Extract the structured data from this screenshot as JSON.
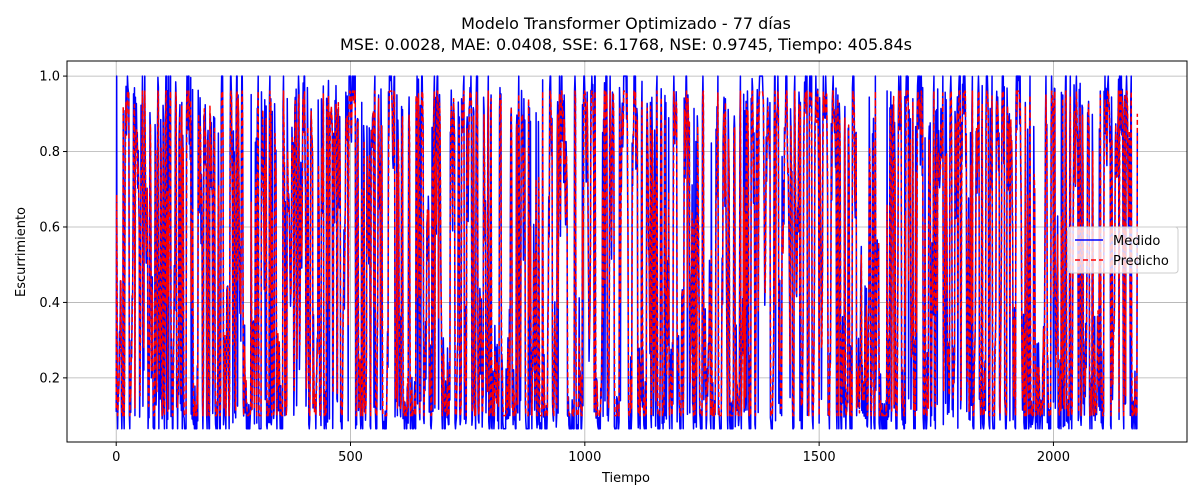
{
  "chart_data": {
    "type": "line",
    "title": "Modelo Transformer Optimizado - 77 días",
    "subtitle": "MSE: 0.0028, MAE: 0.0408, SSE: 6.1768, NSE: 0.9745, Tiempo: 405.84s",
    "xlabel": "Tiempo",
    "ylabel": "Escurrimiento",
    "xlim": [
      -105,
      2285
    ],
    "ylim": [
      0.03,
      1.04
    ],
    "x_ticks": [
      0,
      500,
      1000,
      1500,
      2000
    ],
    "x_tick_labels": [
      "0",
      "500",
      "1000",
      "1500",
      "2000"
    ],
    "y_ticks": [
      0.2,
      0.4,
      0.6,
      0.8,
      1.0
    ],
    "y_tick_labels": [
      "0.2",
      "0.4",
      "0.6",
      "0.8",
      "1.0"
    ],
    "grid": true,
    "legend_position": "center-right",
    "n_points": 2180,
    "series": [
      {
        "name": "Medido",
        "color": "#0000ff",
        "style": "solid",
        "x_start": 0,
        "x_end": 2179,
        "min": 0.065,
        "max": 1.0,
        "points": [
          [
            0,
            0.11
          ],
          [
            15,
            0.9
          ],
          [
            25,
            0.97
          ],
          [
            40,
            0.1
          ],
          [
            60,
            0.92
          ],
          [
            75,
            0.2
          ],
          [
            90,
            0.97
          ],
          [
            110,
            0.09
          ],
          [
            140,
            0.93
          ],
          [
            170,
            0.12
          ],
          [
            200,
            0.9
          ],
          [
            230,
            0.1
          ],
          [
            260,
            0.95
          ],
          [
            300,
            0.08
          ],
          [
            330,
            0.94
          ],
          [
            360,
            0.1
          ],
          [
            390,
            0.96
          ],
          [
            420,
            0.12
          ],
          [
            450,
            0.93
          ],
          [
            480,
            0.09
          ],
          [
            500,
            1.0
          ],
          [
            530,
            0.11
          ],
          [
            560,
            0.95
          ],
          [
            600,
            0.1
          ],
          [
            640,
            0.94
          ],
          [
            680,
            0.12
          ],
          [
            720,
            0.93
          ],
          [
            760,
            0.09
          ],
          [
            800,
            0.95
          ],
          [
            840,
            0.1
          ],
          [
            880,
            0.93
          ],
          [
            910,
            0.99
          ],
          [
            940,
            0.1
          ],
          [
            980,
            0.95
          ],
          [
            1020,
            0.11
          ],
          [
            1060,
            0.94
          ],
          [
            1100,
            0.1
          ],
          [
            1140,
            0.93
          ],
          [
            1180,
            0.12
          ],
          [
            1220,
            0.95
          ],
          [
            1260,
            0.09
          ],
          [
            1300,
            0.94
          ],
          [
            1340,
            0.11
          ],
          [
            1380,
            0.96
          ],
          [
            1420,
            0.1
          ],
          [
            1460,
            0.93
          ],
          [
            1500,
            0.08
          ],
          [
            1540,
            0.95
          ],
          [
            1580,
            0.1
          ],
          [
            1620,
            1.0
          ],
          [
            1660,
            0.12
          ],
          [
            1700,
            0.94
          ],
          [
            1740,
            0.1
          ],
          [
            1780,
            0.96
          ],
          [
            1820,
            0.09
          ],
          [
            1860,
            0.95
          ],
          [
            1900,
            0.11
          ],
          [
            1940,
            0.93
          ],
          [
            1980,
            0.1
          ],
          [
            2020,
            0.95
          ],
          [
            2060,
            0.12
          ],
          [
            2100,
            0.96
          ],
          [
            2140,
            0.09
          ],
          [
            2179,
            0.85
          ]
        ]
      },
      {
        "name": "Predicho",
        "color": "#ff0000",
        "style": "dashed",
        "x_start": 0,
        "x_end": 2179,
        "min": 0.1,
        "max": 0.96,
        "points": [
          [
            0,
            0.12
          ],
          [
            15,
            0.92
          ],
          [
            25,
            0.95
          ],
          [
            40,
            0.12
          ],
          [
            60,
            0.9
          ],
          [
            75,
            0.22
          ],
          [
            90,
            0.95
          ],
          [
            110,
            0.11
          ],
          [
            140,
            0.92
          ],
          [
            170,
            0.13
          ],
          [
            200,
            0.92
          ],
          [
            230,
            0.12
          ],
          [
            260,
            0.94
          ],
          [
            300,
            0.1
          ],
          [
            330,
            0.93
          ],
          [
            360,
            0.12
          ],
          [
            390,
            0.95
          ],
          [
            420,
            0.13
          ],
          [
            450,
            0.92
          ],
          [
            480,
            0.11
          ],
          [
            500,
            0.95
          ],
          [
            530,
            0.12
          ],
          [
            560,
            0.94
          ],
          [
            600,
            0.12
          ],
          [
            640,
            0.95
          ],
          [
            680,
            0.13
          ],
          [
            720,
            0.94
          ],
          [
            760,
            0.11
          ],
          [
            800,
            0.94
          ],
          [
            840,
            0.12
          ],
          [
            880,
            0.94
          ],
          [
            910,
            0.96
          ],
          [
            940,
            0.12
          ],
          [
            980,
            0.94
          ],
          [
            1020,
            0.12
          ],
          [
            1060,
            0.93
          ],
          [
            1100,
            0.12
          ],
          [
            1140,
            0.92
          ],
          [
            1180,
            0.13
          ],
          [
            1220,
            0.94
          ],
          [
            1260,
            0.11
          ],
          [
            1300,
            0.93
          ],
          [
            1340,
            0.12
          ],
          [
            1380,
            0.95
          ],
          [
            1420,
            0.12
          ],
          [
            1460,
            0.92
          ],
          [
            1500,
            0.1
          ],
          [
            1540,
            0.94
          ],
          [
            1580,
            0.12
          ],
          [
            1620,
            0.96
          ],
          [
            1660,
            0.13
          ],
          [
            1700,
            0.93
          ],
          [
            1740,
            0.12
          ],
          [
            1780,
            0.95
          ],
          [
            1820,
            0.11
          ],
          [
            1860,
            0.94
          ],
          [
            1900,
            0.12
          ],
          [
            1940,
            0.92
          ],
          [
            1980,
            0.12
          ],
          [
            2020,
            0.94
          ],
          [
            2060,
            0.13
          ],
          [
            2100,
            0.95
          ],
          [
            2140,
            0.11
          ],
          [
            2179,
            0.9
          ]
        ]
      }
    ]
  }
}
